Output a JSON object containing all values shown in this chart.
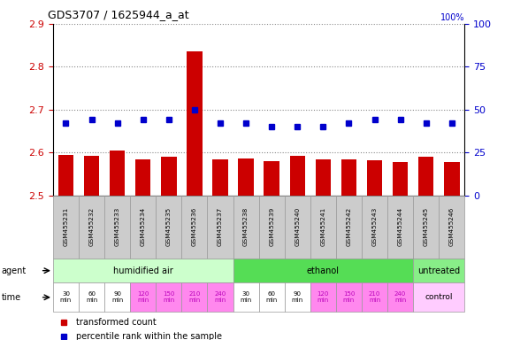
{
  "title": "GDS3707 / 1625944_a_at",
  "samples": [
    "GSM455231",
    "GSM455232",
    "GSM455233",
    "GSM455234",
    "GSM455235",
    "GSM455236",
    "GSM455237",
    "GSM455238",
    "GSM455239",
    "GSM455240",
    "GSM455241",
    "GSM455242",
    "GSM455243",
    "GSM455244",
    "GSM455245",
    "GSM455246"
  ],
  "bar_values": [
    2.594,
    2.592,
    2.605,
    2.585,
    2.59,
    2.835,
    2.585,
    2.587,
    2.58,
    2.592,
    2.585,
    2.585,
    2.583,
    2.578,
    2.591,
    2.578
  ],
  "dot_values": [
    42,
    44,
    42,
    44,
    44,
    50,
    42,
    42,
    40,
    40,
    40,
    42,
    44,
    44,
    42,
    42
  ],
  "ylim_left": [
    2.5,
    2.9
  ],
  "ylim_right": [
    0,
    100
  ],
  "yticks_left": [
    2.5,
    2.6,
    2.7,
    2.8,
    2.9
  ],
  "yticks_right": [
    0,
    25,
    50,
    75,
    100
  ],
  "bar_color": "#cc0000",
  "dot_color": "#0000cc",
  "bar_width": 0.6,
  "agent_groups": [
    {
      "label": "humidified air",
      "start": 0,
      "end": 7,
      "color": "#ccffcc"
    },
    {
      "label": "ethanol",
      "start": 7,
      "end": 14,
      "color": "#55dd55"
    },
    {
      "label": "untreated",
      "start": 14,
      "end": 16,
      "color": "#88ee88"
    }
  ],
  "time_labels": [
    "30\nmin",
    "60\nmin",
    "90\nmin",
    "120\nmin",
    "150\nmin",
    "210\nmin",
    "240\nmin",
    "30\nmin",
    "60\nmin",
    "90\nmin",
    "120\nmin",
    "150\nmin",
    "210\nmin",
    "240\nmin"
  ],
  "time_bg_white": [
    0,
    1,
    2,
    7,
    8,
    9
  ],
  "time_bg_pink": [
    3,
    4,
    5,
    6,
    10,
    11,
    12,
    13
  ],
  "time_pink_color": "#ff88ee",
  "time_pink_text": "#bb00bb",
  "time_white_color": "#ffffff",
  "time_white_text": "#000000",
  "time_control_color": "#ffccff",
  "legend_bar_label": "transformed count",
  "legend_dot_label": "percentile rank within the sample",
  "grid_color": "#888888",
  "left_tick_color": "#cc0000",
  "right_tick_color": "#0000cc",
  "sample_bg_color": "#cccccc",
  "agent_colors": [
    "#ccffcc",
    "#55dd55",
    "#88ee88"
  ]
}
